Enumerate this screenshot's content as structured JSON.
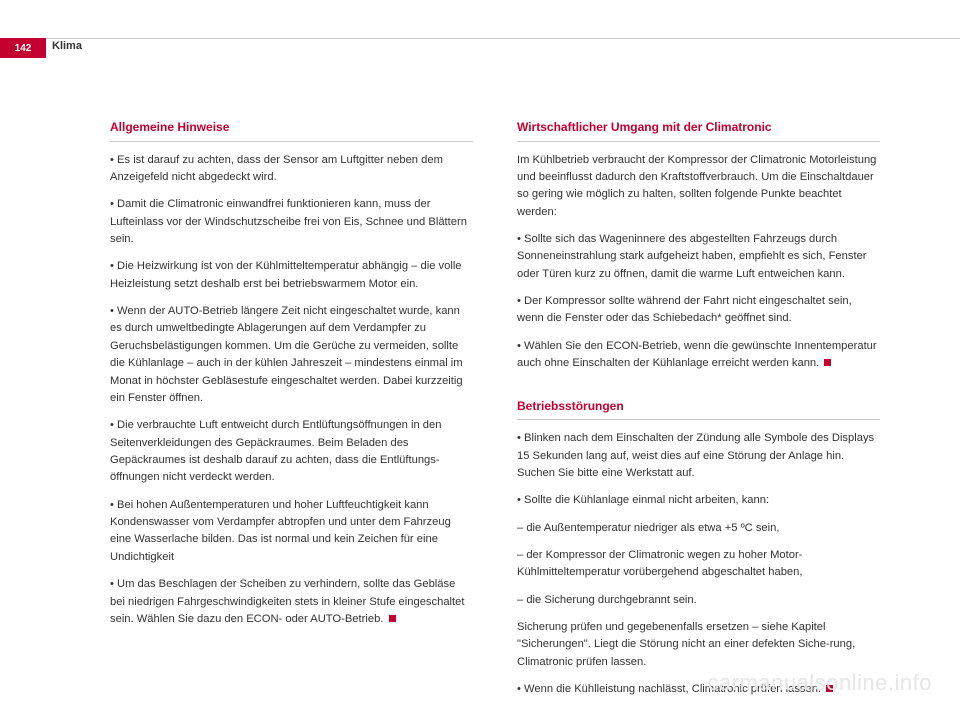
{
  "page_number": "142",
  "section": "Klima",
  "left": {
    "heading1": "Allgemeine Hinweise",
    "p1": "• Es ist darauf zu achten, dass der Sensor am Luftgitter neben dem Anzeigefeld nicht abgedeckt wird.",
    "p2": "• Damit die Climatronic einwandfrei funktionieren kann, muss der Lufteinlass vor der Windschutzscheibe frei von Eis, Schnee und Blättern sein.",
    "p3": "• Die Heizwirkung ist von der Kühlmitteltemperatur abhängig – die volle Heizleistung setzt deshalb erst bei betriebswarmem Motor ein.",
    "p4": "• Wenn der AUTO-Betrieb längere Zeit nicht eingeschaltet wurde, kann es durch umweltbedingte Ablagerungen auf dem Verdampfer zu Geruchsbelästigungen kommen. Um die Gerüche zu vermeiden, sollte die Kühlanlage – auch in der kühlen Jahreszeit – mindestens einmal im Monat in höchster Gebläsestufe eingeschaltet werden. Dabei kurzzeitig ein Fenster öffnen.",
    "p5": "• Die verbrauchte Luft entweicht durch Entlüftungsöffnungen in den Seitenverkleidungen des Gepäckraumes. Beim Beladen des Gepäckraumes ist deshalb darauf zu achten, dass die Entlüftungs-öffnungen nicht verdeckt werden.",
    "p6": "• Bei hohen Außentemperaturen und hoher Luftfeuchtigkeit kann Kondenswasser vom Verdampfer abtropfen und unter dem Fahrzeug eine Wasserlache bilden. Das ist normal und kein Zeichen für eine Undichtigkeit",
    "p7": "• Um das Beschlagen der Scheiben zu verhindern, sollte das Gebläse bei niedrigen Fahrgeschwindigkeiten stets in kleiner Stufe eingeschaltet sein. Wählen Sie dazu den ECON- oder AUTO-Betrieb."
  },
  "right": {
    "heading1": "Wirtschaftlicher Umgang mit der Climatronic",
    "p1": "Im Kühlbetrieb verbraucht der Kompressor der Climatronic Motorleistung und beeinflusst dadurch den Kraftstoffverbrauch. Um die Einschaltdauer so gering wie möglich zu halten, sollten folgende Punkte beachtet werden:",
    "p2": "• Sollte sich das Wageninnere des abgestellten Fahrzeugs durch Sonneneinstrahlung stark aufgeheizt haben, empfiehlt es sich, Fenster oder Türen kurz zu öffnen, damit die warme Luft entweichen kann.",
    "p3": "• Der Kompressor sollte während der Fahrt nicht eingeschaltet sein, wenn die Fenster oder das Schiebedach* geöffnet sind.",
    "p4": "• Wählen Sie den ECON-Betrieb, wenn die gewünschte Innentemperatur auch ohne Einschalten der Kühlanlage erreicht werden kann.",
    "heading2": "Betriebsstörungen",
    "p5": "• Blinken nach dem Einschalten der Zündung alle Symbole des Displays 15 Sekunden lang auf, weist dies auf eine Störung der Anlage hin. Suchen Sie bitte eine Werkstatt auf.",
    "p6": "• Sollte die Kühlanlage einmal nicht arbeiten, kann:",
    "p7": "– die Außentemperatur niedriger als etwa +5 ºC sein,",
    "p8": "– der Kompressor der Climatronic wegen zu hoher Motor-Kühlmitteltemperatur vorübergehend abgeschaltet haben,",
    "p9": "– die Sicherung durchgebrannt sein.",
    "p10": "Sicherung prüfen und gegebenenfalls ersetzen – siehe Kapitel \"Sicherungen\".  Liegt die Störung nicht an einer defekten Siche-rung, Climatronic prüfen lassen.",
    "p11": "• Wenn die Kühlleistung nachlässt, Climatronic prüfen lassen."
  },
  "watermark": "carmanualsonline.info",
  "colors": {
    "accent": "#c3002f",
    "text": "#333333",
    "rule": "#cccccc",
    "watermark": "#e6e6e6",
    "background": "#ffffff"
  }
}
